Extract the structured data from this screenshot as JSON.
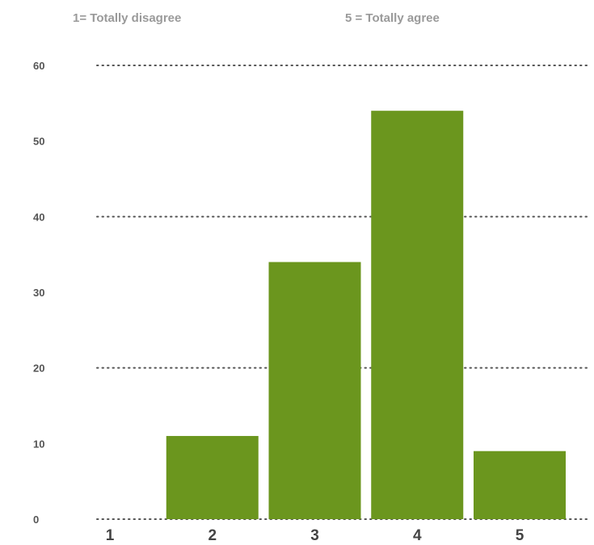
{
  "notes": {
    "left": "1= Totally disagree",
    "right": "5 = Totally agree"
  },
  "chart_data": {
    "type": "bar",
    "title": "",
    "xlabel": "",
    "ylabel": "",
    "categories": [
      "1",
      "2",
      "3",
      "4",
      "5"
    ],
    "values": [
      0,
      11,
      34,
      54,
      9
    ],
    "ylim": [
      0,
      60
    ],
    "yticks": [
      0,
      10,
      20,
      30,
      40,
      50,
      60
    ],
    "ytick_labels": [
      "0",
      "10",
      "20",
      "30",
      "40",
      "50",
      "60"
    ],
    "gridlines": [
      0,
      20,
      40,
      60
    ],
    "grid_style": "dotted",
    "bar_color": "#6b961e",
    "legend": "none"
  }
}
